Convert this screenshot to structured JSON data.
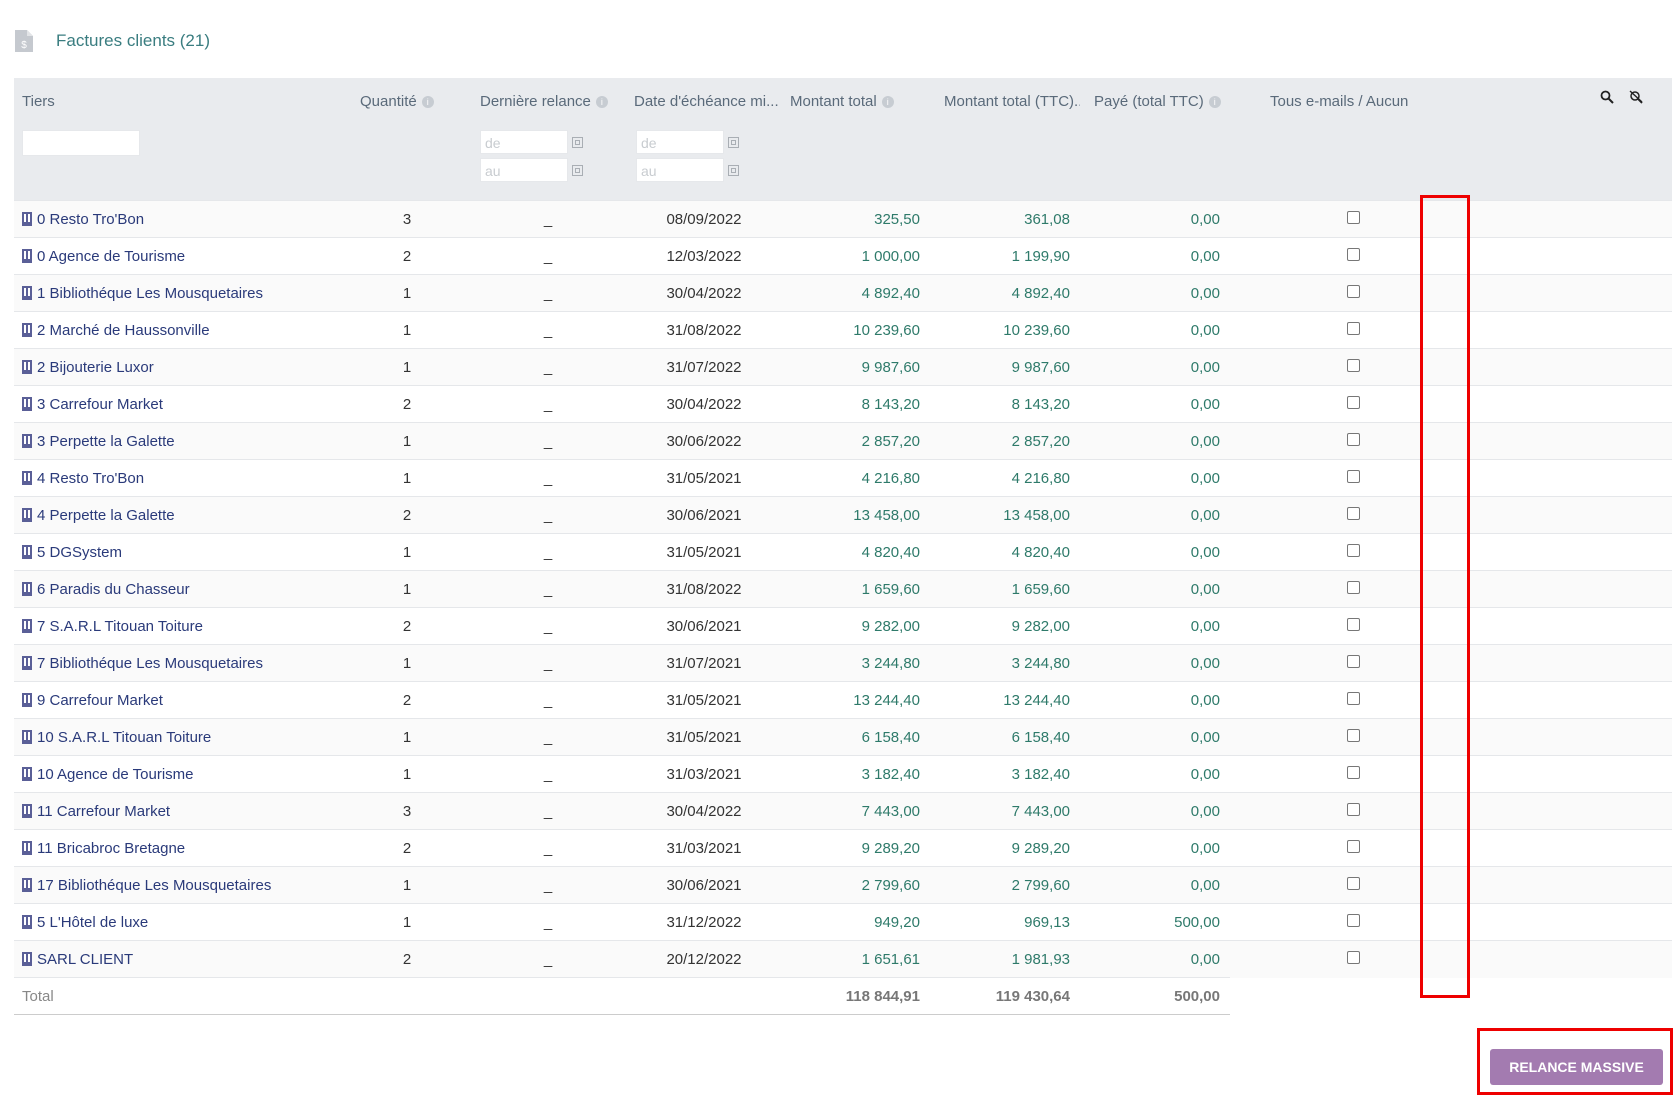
{
  "header": {
    "title": "Factures clients (21)",
    "icon": "invoice-dollar-icon"
  },
  "columns": {
    "tiers": "Tiers",
    "quantite": "Quantité",
    "derniere_relance": "Dernière relance",
    "date_echeance": "Date d'échéance mi...",
    "montant_total": "Montant total",
    "montant_ttc": "Montant total (TTC)...",
    "paye": "Payé (total TTC)",
    "emails": "Tous e-mails / Aucun"
  },
  "filters": {
    "from_placeholder": "de",
    "to_placeholder": "au"
  },
  "rows": [
    {
      "tiers": "0 Resto Tro'Bon",
      "qte": "3",
      "relance": "_",
      "date": "08/09/2022",
      "ht": "325,50",
      "ttc": "361,08",
      "paye": "0,00"
    },
    {
      "tiers": "0 Agence de Tourisme",
      "qte": "2",
      "relance": "_",
      "date": "12/03/2022",
      "ht": "1 000,00",
      "ttc": "1 199,90",
      "paye": "0,00"
    },
    {
      "tiers": "1 Bibliothéque Les Mousquetaires",
      "qte": "1",
      "relance": "_",
      "date": "30/04/2022",
      "ht": "4 892,40",
      "ttc": "4 892,40",
      "paye": "0,00"
    },
    {
      "tiers": "2 Marché de Haussonville",
      "qte": "1",
      "relance": "_",
      "date": "31/08/2022",
      "ht": "10 239,60",
      "ttc": "10 239,60",
      "paye": "0,00"
    },
    {
      "tiers": "2 Bijouterie Luxor",
      "qte": "1",
      "relance": "_",
      "date": "31/07/2022",
      "ht": "9 987,60",
      "ttc": "9 987,60",
      "paye": "0,00"
    },
    {
      "tiers": "3 Carrefour Market",
      "qte": "2",
      "relance": "_",
      "date": "30/04/2022",
      "ht": "8 143,20",
      "ttc": "8 143,20",
      "paye": "0,00"
    },
    {
      "tiers": "3 Perpette la Galette",
      "qte": "1",
      "relance": "_",
      "date": "30/06/2022",
      "ht": "2 857,20",
      "ttc": "2 857,20",
      "paye": "0,00"
    },
    {
      "tiers": "4 Resto Tro'Bon",
      "qte": "1",
      "relance": "_",
      "date": "31/05/2021",
      "ht": "4 216,80",
      "ttc": "4 216,80",
      "paye": "0,00"
    },
    {
      "tiers": "4 Perpette la Galette",
      "qte": "2",
      "relance": "_",
      "date": "30/06/2021",
      "ht": "13 458,00",
      "ttc": "13 458,00",
      "paye": "0,00"
    },
    {
      "tiers": "5 DGSystem",
      "qte": "1",
      "relance": "_",
      "date": "31/05/2021",
      "ht": "4 820,40",
      "ttc": "4 820,40",
      "paye": "0,00"
    },
    {
      "tiers": "6 Paradis du Chasseur",
      "qte": "1",
      "relance": "_",
      "date": "31/08/2022",
      "ht": "1 659,60",
      "ttc": "1 659,60",
      "paye": "0,00"
    },
    {
      "tiers": "7 S.A.R.L Titouan Toiture",
      "qte": "2",
      "relance": "_",
      "date": "30/06/2021",
      "ht": "9 282,00",
      "ttc": "9 282,00",
      "paye": "0,00"
    },
    {
      "tiers": "7 Bibliothéque Les Mousquetaires",
      "qte": "1",
      "relance": "_",
      "date": "31/07/2021",
      "ht": "3 244,80",
      "ttc": "3 244,80",
      "paye": "0,00"
    },
    {
      "tiers": "9 Carrefour Market",
      "qte": "2",
      "relance": "_",
      "date": "31/05/2021",
      "ht": "13 244,40",
      "ttc": "13 244,40",
      "paye": "0,00"
    },
    {
      "tiers": "10 S.A.R.L Titouan Toiture",
      "qte": "1",
      "relance": "_",
      "date": "31/05/2021",
      "ht": "6 158,40",
      "ttc": "6 158,40",
      "paye": "0,00"
    },
    {
      "tiers": "10 Agence de Tourisme",
      "qte": "1",
      "relance": "_",
      "date": "31/03/2021",
      "ht": "3 182,40",
      "ttc": "3 182,40",
      "paye": "0,00"
    },
    {
      "tiers": "11 Carrefour Market",
      "qte": "3",
      "relance": "_",
      "date": "30/04/2022",
      "ht": "7 443,00",
      "ttc": "7 443,00",
      "paye": "0,00"
    },
    {
      "tiers": "11 Bricabroc Bretagne",
      "qte": "2",
      "relance": "_",
      "date": "31/03/2021",
      "ht": "9 289,20",
      "ttc": "9 289,20",
      "paye": "0,00"
    },
    {
      "tiers": "17 Bibliothéque Les Mousquetaires",
      "qte": "1",
      "relance": "_",
      "date": "30/06/2021",
      "ht": "2 799,60",
      "ttc": "2 799,60",
      "paye": "0,00"
    },
    {
      "tiers": "5 L'Hôtel de luxe",
      "qte": "1",
      "relance": "_",
      "date": "31/12/2022",
      "ht": "949,20",
      "ttc": "969,13",
      "paye": "500,00"
    },
    {
      "tiers": "SARL CLIENT",
      "qte": "2",
      "relance": "_",
      "date": "20/12/2022",
      "ht": "1 651,61",
      "ttc": "1 981,93",
      "paye": "0,00"
    }
  ],
  "total": {
    "label": "Total",
    "ht": "118 844,91",
    "ttc": "119 430,64",
    "paye": "500,00"
  },
  "actions": {
    "relance_label": "RELANCE MASSIVE"
  },
  "colors": {
    "accent": "#3a7d80",
    "money": "#2e7a6a",
    "button": "#a37bb0",
    "highlight": "#e00000"
  }
}
